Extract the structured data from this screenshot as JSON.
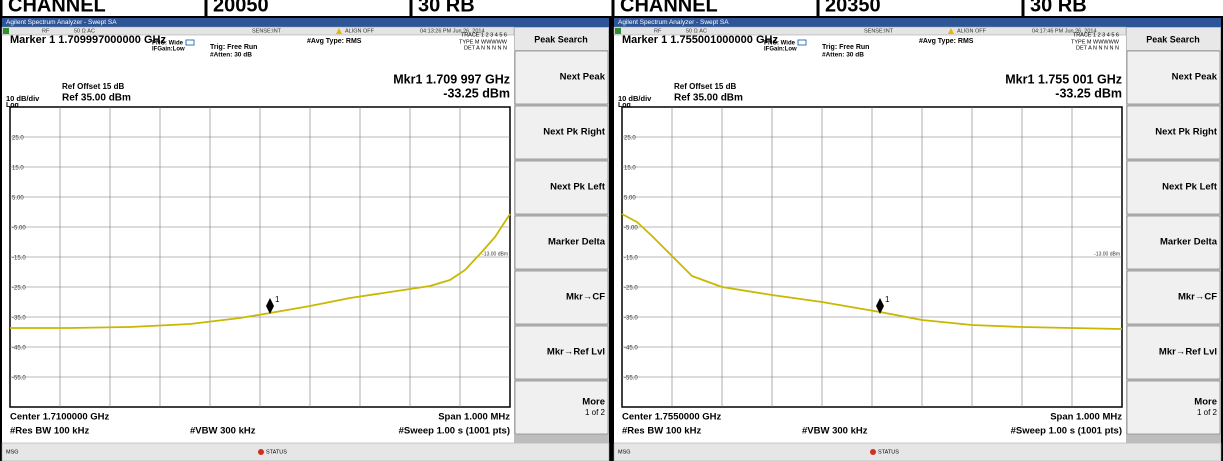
{
  "header": {
    "cells": [
      "CHANNEL",
      "20050",
      "30 RB",
      "CHANNEL",
      "20350",
      "30 RB"
    ]
  },
  "panels": [
    {
      "title": "Agilent Spectrum Analyzer - Swept SA",
      "status": {
        "rf": "RF",
        "impedance": "50 Ω  AC",
        "sense": "SENSE:INT",
        "align": "ALIGN OFF",
        "timestamp": "04:13:26 PM Jun 26, 2014"
      },
      "marker": "Marker 1  1.709997000000 GHz",
      "pno": "PNO: Wide",
      "ifgain": "IFGain:Low",
      "trig": "Trig: Free Run",
      "atten": "#Atten: 30 dB",
      "avg_type": "#Avg Type: RMS",
      "trace": "TRACE 1 2 3 4 5 6",
      "trace_type": "TYPE M WWWWW",
      "det": "DET A N N N N N",
      "ref_offset": "Ref Offset 15 dB",
      "scale": "10 dB/div",
      "ref_level": "Ref 35.00 dBm",
      "log": "Log",
      "marker_freq": "Mkr1 1.709 997 GHz",
      "marker_level": "-33.25 dBm",
      "marker_label": "1",
      "limit_label": "-13.00 dBm",
      "yticks": [
        "25.0",
        "15.0",
        "5.00",
        "-5.00",
        "-15.0",
        "-25.0",
        "-35.0",
        "-45.0",
        "-55.0"
      ],
      "center": "Center 1.7100000 GHz",
      "span": "Span 1.000 MHz",
      "rbw": "#Res BW 100 kHz",
      "vbw": "#VBW 300 kHz",
      "sweep": "#Sweep  1.00 s (1001 pts)",
      "msg": "MSG",
      "status_bar": "STATUS",
      "softkeys": [
        "Peak Search",
        "Next Peak",
        "Next Pk Right",
        "Next Pk Left",
        "Marker Delta",
        "Mkr→CF",
        "Mkr→Ref Lvl",
        "More"
      ],
      "page": "1 of 2"
    },
    {
      "title": "Agilent Spectrum Analyzer - Swept SA",
      "status": {
        "rf": "RF",
        "impedance": "50 Ω  AC",
        "sense": "SENSE:INT",
        "align": "ALIGN OFF",
        "timestamp": "04:17:46 PM Jun 26, 2014"
      },
      "marker": "Marker 1  1.755001000000 GHz",
      "pno": "PNO: Wide",
      "ifgain": "IFGain:Low",
      "trig": "Trig: Free Run",
      "atten": "#Atten: 30 dB",
      "avg_type": "#Avg Type: RMS",
      "trace": "TRACE 1 2 3 4 5 6",
      "trace_type": "TYPE M WWWWW",
      "det": "DET A N N N N N",
      "ref_offset": "Ref Offset 15 dB",
      "scale": "10 dB/div",
      "ref_level": "Ref 35.00 dBm",
      "log": "Log",
      "marker_freq": "Mkr1 1.755 001 GHz",
      "marker_level": "-33.25 dBm",
      "marker_label": "1",
      "limit_label": "-13.00 dBm",
      "yticks": [
        "25.0",
        "15.0",
        "5.00",
        "-5.00",
        "-15.0",
        "-25.0",
        "-35.0",
        "-45.0",
        "-55.0"
      ],
      "center": "Center 1.7550000 GHz",
      "span": "Span 1.000 MHz",
      "rbw": "#Res BW 100 kHz",
      "vbw": "#VBW 300 kHz",
      "sweep": "#Sweep  1.00 s (1001 pts)",
      "msg": "MSG",
      "status_bar": "STATUS",
      "softkeys": [
        "Peak Search",
        "Next Peak",
        "Next Pk Right",
        "Next Pk Left",
        "Marker Delta",
        "Mkr→CF",
        "Mkr→Ref Lvl",
        "More"
      ],
      "page": "1 of 2"
    }
  ]
}
